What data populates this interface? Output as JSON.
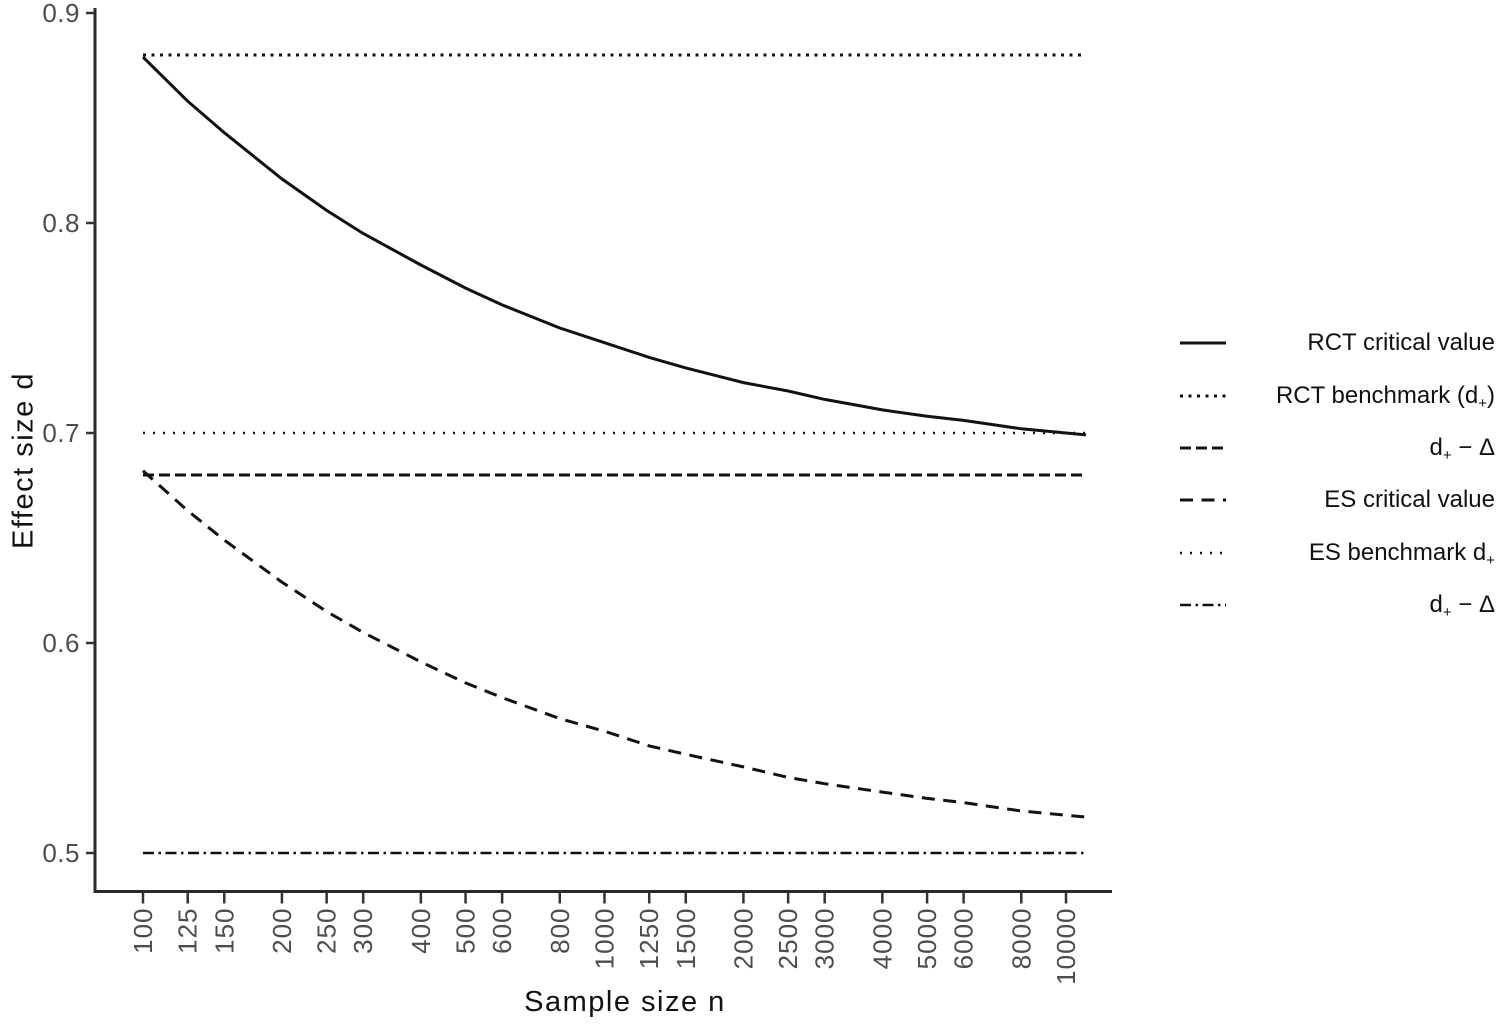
{
  "chart_data": {
    "type": "line",
    "title": "",
    "xlabel": "Sample size n",
    "ylabel": "Effect size d",
    "x_scale": "log10",
    "grid": false,
    "background": "#ffffff",
    "xlim": [
      100,
      10000
    ],
    "ylim": [
      0.47,
      0.905
    ],
    "x_ticks": [
      100,
      125,
      150,
      200,
      250,
      300,
      400,
      500,
      600,
      800,
      1000,
      1250,
      1500,
      2000,
      2500,
      3000,
      4000,
      5000,
      6000,
      8000,
      10000
    ],
    "y_ticks": [
      0.5,
      0.6,
      0.7,
      0.8,
      0.9
    ],
    "series": [
      {
        "name": "RCT critical value",
        "kind": "curve",
        "style": "solid",
        "x": [
          100,
          125,
          150,
          200,
          250,
          300,
          400,
          500,
          600,
          800,
          1000,
          1250,
          1500,
          2000,
          2500,
          3000,
          4000,
          5000,
          6000,
          8000,
          10000
        ],
        "y": [
          0.879,
          0.858,
          0.843,
          0.821,
          0.806,
          0.795,
          0.78,
          0.769,
          0.761,
          0.75,
          0.743,
          0.736,
          0.731,
          0.724,
          0.72,
          0.716,
          0.711,
          0.708,
          0.706,
          0.702,
          0.7
        ]
      },
      {
        "name": "RCT benchmark (d+)",
        "kind": "hline",
        "style": "dotted-dense",
        "value": 0.88
      },
      {
        "name": "d+ - delta (RCT)",
        "kind": "hline",
        "style": "dashed-tight",
        "value": 0.68
      },
      {
        "name": "ES critical value",
        "kind": "curve",
        "style": "dashed",
        "x": [
          100,
          125,
          150,
          200,
          250,
          300,
          400,
          500,
          600,
          800,
          1000,
          1250,
          1500,
          2000,
          2500,
          3000,
          4000,
          5000,
          6000,
          8000,
          10000
        ],
        "y": [
          0.682,
          0.663,
          0.649,
          0.629,
          0.615,
          0.605,
          0.591,
          0.581,
          0.574,
          0.564,
          0.558,
          0.551,
          0.547,
          0.541,
          0.536,
          0.533,
          0.529,
          0.526,
          0.524,
          0.52,
          0.518
        ]
      },
      {
        "name": "ES benchmark d+",
        "kind": "hline",
        "style": "dotted-sparse",
        "value": 0.7
      },
      {
        "name": "d+ - delta (ES)",
        "kind": "hline",
        "style": "dashdot",
        "value": 0.5
      }
    ],
    "legend": {
      "position": "right-middle",
      "entries": [
        {
          "style": "solid",
          "runs": [
            {
              "t": "RCT critical value"
            }
          ]
        },
        {
          "style": "dotted-dense",
          "runs": [
            {
              "t": "RCT benchmark (d"
            },
            {
              "t": "+",
              "sub": true
            },
            {
              "t": ")"
            }
          ]
        },
        {
          "style": "dashed-tight",
          "runs": [
            {
              "t": "d"
            },
            {
              "t": "+",
              "sub": true
            },
            {
              "t": " − Δ"
            }
          ]
        },
        {
          "style": "dashed",
          "runs": [
            {
              "t": "ES critical value"
            }
          ]
        },
        {
          "style": "dotted-sparse",
          "runs": [
            {
              "t": "ES benchmark d"
            },
            {
              "t": "+",
              "sub": true
            }
          ]
        },
        {
          "style": "dashdot",
          "runs": [
            {
              "t": "d"
            },
            {
              "t": "+",
              "sub": true
            },
            {
              "t": " − Δ"
            }
          ]
        }
      ]
    },
    "colors": {
      "line": "#121212",
      "axis": "#2a2a2a",
      "tick": "#333333",
      "tick_label": "#4d4d4d",
      "text": "#111111",
      "background": "#ffffff"
    }
  }
}
